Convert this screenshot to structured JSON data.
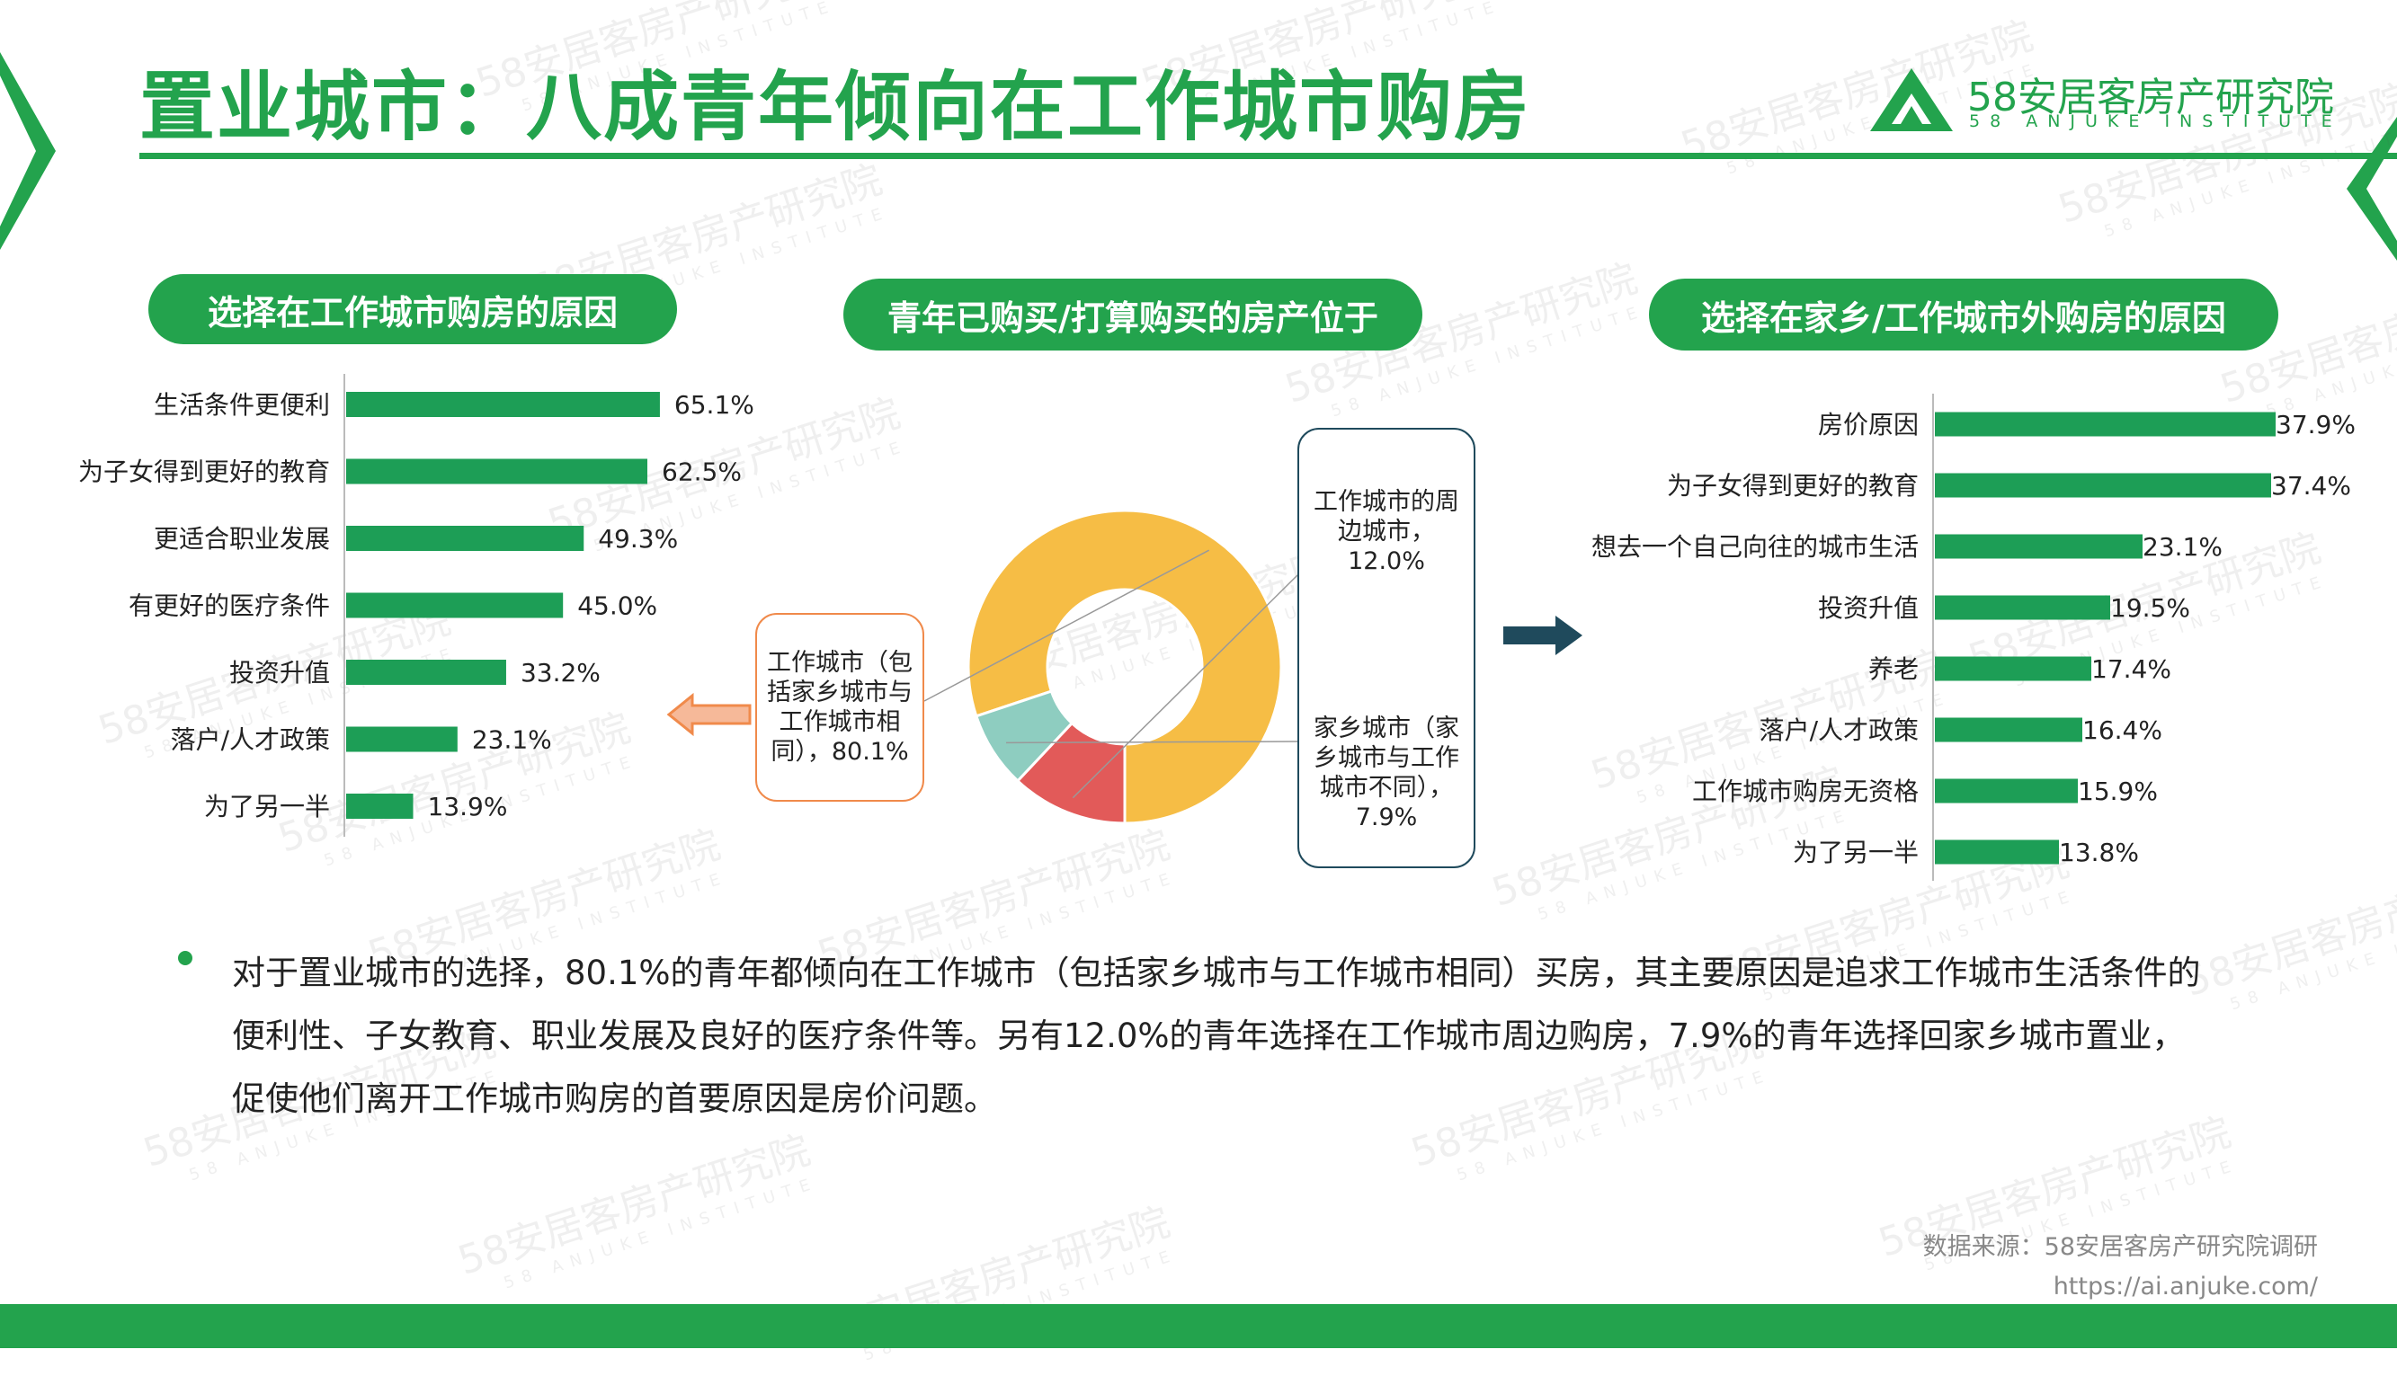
{
  "title": "置业城市：八成青年倾向在工作城市购房",
  "logo": {
    "cn": "58安居客房产研究院",
    "en": "58 ANJUKE INSTITUTE"
  },
  "watermark": {
    "cn": "58安居客房产研究院",
    "en": "58 ANJUKE INSTITUTE"
  },
  "colors": {
    "brand": "#23a34d",
    "bar": "#1d9e56",
    "donut_work": "#f6bd45",
    "donut_nearby": "#e25a59",
    "donut_home": "#8ecdc0",
    "arrow_left": "#f08a4b",
    "arrow_right": "#1f4a5c"
  },
  "panels": {
    "left_title": "选择在工作城市购房的原因",
    "middle_title": "青年已购买/打算购买的房产位于",
    "right_title": "选择在家乡/工作城市外购房的原因"
  },
  "chart_data": [
    {
      "type": "bar",
      "orientation": "horizontal",
      "title": "选择在工作城市购房的原因",
      "categories": [
        "生活条件更便利",
        "为子女得到更好的教育",
        "更适合职业发展",
        "有更好的医疗条件",
        "投资升值",
        "落户/人才政策",
        "为了另一半"
      ],
      "values": [
        65.1,
        62.5,
        49.3,
        45.0,
        33.2,
        23.1,
        13.9
      ],
      "labels": [
        "65.1%",
        "62.5%",
        "49.3%",
        "45.0%",
        "33.2%",
        "23.1%",
        "13.9%"
      ],
      "unit": "%",
      "xlim": [
        0,
        100
      ],
      "grid": false
    },
    {
      "type": "pie",
      "variant": "donut",
      "title": "青年已购买/打算购买的房产位于",
      "slices": [
        {
          "label": "工作城市（包括家乡城市与工作城市相同）",
          "value": 80.1,
          "callout": "工作城市（包括家乡城市与工作城市相同），80.1%"
        },
        {
          "label": "工作城市的周边城市",
          "value": 12.0,
          "callout": "工作城市的周边城市，12.0%"
        },
        {
          "label": "家乡城市（家乡城市与工作城市不同）",
          "value": 7.9,
          "callout": "家乡城市（家乡城市与工作城市不同），7.9%"
        }
      ]
    },
    {
      "type": "bar",
      "orientation": "horizontal",
      "title": "选择在家乡/工作城市外购房的原因",
      "categories": [
        "房价原因",
        "为子女得到更好的教育",
        "想去一个自己向往的城市生活",
        "投资升值",
        "养老",
        "落户/人才政策",
        "工作城市购房无资格",
        "为了另一半"
      ],
      "values": [
        37.9,
        37.4,
        23.1,
        19.5,
        17.4,
        16.4,
        15.9,
        13.8
      ],
      "labels": [
        "37.9%",
        "37.4%",
        "23.1%",
        "19.5%",
        "17.4%",
        "16.4%",
        "15.9%",
        "13.8%"
      ],
      "unit": "%",
      "xlim": [
        0,
        38
      ],
      "grid": false
    }
  ],
  "callouts": {
    "work": [
      "工作城市（包",
      "括家乡城市与",
      "工作城市相",
      "同），80.1%"
    ],
    "nearby": [
      "工作城市的周",
      "边城市，",
      "12.0%"
    ],
    "home": [
      "家乡城市（家",
      "乡城市与工作",
      "城市不同），",
      "7.9%"
    ]
  },
  "description": "对于置业城市的选择，80.1%的青年都倾向在工作城市（包括家乡城市与工作城市相同）买房，其主要原因是追求工作城市生活条件的便利性、子女教育、职业发展及良好的医疗条件等。另有12.0%的青年选择在工作城市周边购房，7.9%的青年选择回家乡城市置业，促使他们离开工作城市购房的首要原因是房价问题。",
  "source": {
    "label": "数据来源：58安居客房产研究院调研",
    "url": "https://ai.anjuke.com/"
  }
}
